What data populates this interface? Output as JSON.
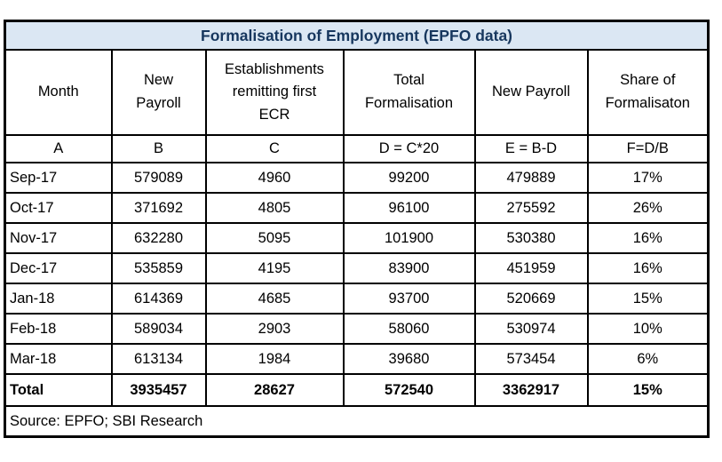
{
  "chart_data": {
    "type": "table",
    "title": "Formalisation of Employment (EPFO data)",
    "columns": [
      {
        "label": "Month",
        "code": "A"
      },
      {
        "label": "New Payroll",
        "code": "B"
      },
      {
        "label": "Establishments remitting first ECR",
        "code": "C"
      },
      {
        "label": "Total Formalisation",
        "code": "D = C*20"
      },
      {
        "label": "New Payroll",
        "code": "E = B-D"
      },
      {
        "label": "Share of Formalisaton",
        "code": "F=D/B"
      }
    ],
    "rows": [
      [
        "Sep-17",
        "579089",
        "4960",
        "99200",
        "479889",
        "17%"
      ],
      [
        "Oct-17",
        "371692",
        "4805",
        "96100",
        "275592",
        "26%"
      ],
      [
        "Nov-17",
        "632280",
        "5095",
        "101900",
        "530380",
        "16%"
      ],
      [
        "Dec-17",
        "535859",
        "4195",
        "83900",
        "451959",
        "16%"
      ],
      [
        "Jan-18",
        "614369",
        "4685",
        "93700",
        "520669",
        "15%"
      ],
      [
        "Feb-18",
        "589034",
        "2903",
        "58060",
        "530974",
        "10%"
      ],
      [
        "Mar-18",
        "613134",
        "1984",
        "39680",
        "573454",
        "6%"
      ]
    ],
    "total_row": [
      "Total",
      "3935457",
      "28627",
      "572540",
      "3362917",
      "15%"
    ],
    "source_note": "Source: EPFO; SBI Research"
  },
  "colors": {
    "title_background": "#dbe7f3",
    "title_text": "#17375e",
    "border": "#000000",
    "body_text": "#000000"
  }
}
